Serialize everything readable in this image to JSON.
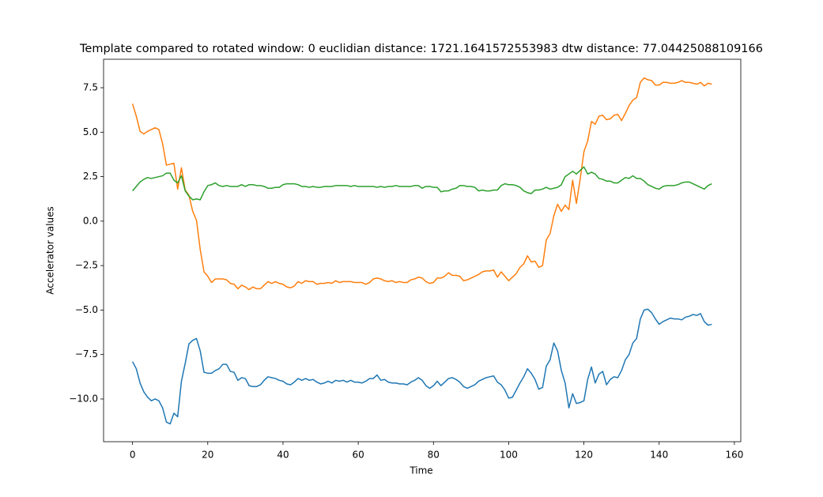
{
  "chart_data": {
    "type": "line",
    "title": "Template compared to rotated window: 0  euclidian distance: 1721.1641572553983  dtw distance: 77.04425088109166",
    "xlabel": "Time",
    "ylabel": "Accelerator values",
    "x": [
      0,
      1,
      2,
      3,
      4,
      5,
      6,
      7,
      8,
      9,
      10,
      11,
      12,
      13,
      14,
      15,
      16,
      17,
      18,
      19,
      20,
      21,
      22,
      23,
      24,
      25,
      26,
      27,
      28,
      29,
      30,
      31,
      32,
      33,
      34,
      35,
      36,
      37,
      38,
      39,
      40,
      41,
      42,
      43,
      44,
      45,
      46,
      47,
      48,
      49,
      50,
      51,
      52,
      53,
      54,
      55,
      56,
      57,
      58,
      59,
      60,
      61,
      62,
      63,
      64,
      65,
      66,
      67,
      68,
      69,
      70,
      71,
      72,
      73,
      74,
      75,
      76,
      77,
      78,
      79,
      80,
      81,
      82,
      83,
      84,
      85,
      86,
      87,
      88,
      89,
      90,
      91,
      92,
      93,
      94,
      95,
      96,
      97,
      98,
      99,
      100,
      101,
      102,
      103,
      104,
      105,
      106,
      107,
      108,
      109,
      110,
      111,
      112,
      113,
      114,
      115,
      116,
      117,
      118,
      119,
      120,
      121,
      122,
      123,
      124,
      125,
      126,
      127,
      128,
      129,
      130,
      131,
      132,
      133,
      134,
      135,
      136,
      137,
      138,
      139,
      140,
      141,
      142,
      143,
      144,
      145,
      146,
      147,
      148,
      149,
      150,
      151,
      152,
      153,
      154
    ],
    "series": [
      {
        "color": "#1f77b4",
        "values": [
          -7.9,
          -8.3,
          -9.1,
          -9.6,
          -9.9,
          -10.1,
          -10.0,
          -10.1,
          -10.5,
          -11.3,
          -11.4,
          -10.8,
          -11.0,
          -9.0,
          -8.0,
          -6.9,
          -6.7,
          -6.6,
          -7.3,
          -8.5,
          -8.55,
          -8.55,
          -8.4,
          -8.3,
          -8.05,
          -8.05,
          -8.45,
          -8.5,
          -8.95,
          -8.8,
          -8.85,
          -9.25,
          -9.3,
          -9.3,
          -9.2,
          -8.95,
          -8.75,
          -8.8,
          -8.85,
          -8.95,
          -9.0,
          -9.15,
          -9.2,
          -9.05,
          -8.85,
          -8.95,
          -8.85,
          -8.95,
          -8.9,
          -9.05,
          -9.15,
          -9.1,
          -9.0,
          -9.1,
          -8.95,
          -9.0,
          -8.95,
          -9.05,
          -8.95,
          -9.05,
          -9.05,
          -9.1,
          -9.0,
          -8.85,
          -8.85,
          -8.65,
          -8.95,
          -8.9,
          -9.05,
          -9.1,
          -9.1,
          -9.15,
          -9.15,
          -9.2,
          -9.05,
          -8.95,
          -8.8,
          -8.95,
          -9.25,
          -9.4,
          -9.25,
          -9.0,
          -9.25,
          -9.05,
          -8.85,
          -8.8,
          -8.9,
          -9.05,
          -9.3,
          -9.4,
          -9.3,
          -9.2,
          -9.0,
          -8.9,
          -8.8,
          -8.75,
          -8.7,
          -9.05,
          -9.2,
          -9.5,
          -9.95,
          -9.9,
          -9.5,
          -9.1,
          -8.75,
          -8.3,
          -8.55,
          -8.9,
          -9.45,
          -9.35,
          -8.15,
          -7.8,
          -6.85,
          -7.3,
          -8.4,
          -9.1,
          -10.5,
          -9.7,
          -10.25,
          -10.2,
          -10.1,
          -8.9,
          -8.2,
          -9.1,
          -8.6,
          -8.45,
          -9.2,
          -8.9,
          -8.75,
          -8.8,
          -8.4,
          -7.8,
          -7.5,
          -6.85,
          -6.6,
          -5.5,
          -5.0,
          -4.95,
          -5.15,
          -5.5,
          -5.8,
          -5.65,
          -5.55,
          -5.45,
          -5.5,
          -5.5,
          -5.55,
          -5.4,
          -5.35,
          -5.25,
          -5.3,
          -5.2,
          -5.65,
          -5.85,
          -5.8
        ]
      },
      {
        "color": "#ff7f0e",
        "values": [
          6.6,
          5.9,
          5.05,
          4.9,
          5.05,
          5.15,
          5.25,
          5.15,
          4.35,
          3.15,
          3.2,
          3.25,
          1.8,
          3.0,
          1.75,
          1.45,
          0.55,
          0.05,
          -1.6,
          -2.85,
          -3.1,
          -3.45,
          -3.25,
          -3.25,
          -3.25,
          -3.3,
          -3.5,
          -3.55,
          -3.8,
          -3.6,
          -3.7,
          -3.85,
          -3.7,
          -3.8,
          -3.8,
          -3.6,
          -3.4,
          -3.5,
          -3.4,
          -3.5,
          -3.55,
          -3.7,
          -3.75,
          -3.65,
          -3.4,
          -3.5,
          -3.35,
          -3.4,
          -3.4,
          -3.55,
          -3.5,
          -3.5,
          -3.45,
          -3.5,
          -3.35,
          -3.45,
          -3.4,
          -3.4,
          -3.4,
          -3.45,
          -3.45,
          -3.45,
          -3.55,
          -3.45,
          -3.25,
          -3.2,
          -3.25,
          -3.35,
          -3.4,
          -3.35,
          -3.45,
          -3.4,
          -3.45,
          -3.45,
          -3.3,
          -3.25,
          -3.15,
          -3.2,
          -3.4,
          -3.5,
          -3.45,
          -3.2,
          -3.2,
          -3.1,
          -2.9,
          -3.05,
          -3.05,
          -3.1,
          -3.35,
          -3.3,
          -3.2,
          -3.1,
          -3.0,
          -2.85,
          -2.8,
          -2.8,
          -2.75,
          -3.15,
          -2.85,
          -3.1,
          -3.35,
          -3.15,
          -2.95,
          -2.6,
          -2.4,
          -1.95,
          -2.3,
          -2.25,
          -2.6,
          -2.5,
          -1.05,
          -0.7,
          0.3,
          0.95,
          0.55,
          0.9,
          0.65,
          2.3,
          1.0,
          2.35,
          3.9,
          4.5,
          5.6,
          5.45,
          5.9,
          5.95,
          5.7,
          5.75,
          5.95,
          6.0,
          5.65,
          6.05,
          6.5,
          6.8,
          6.95,
          7.8,
          8.05,
          7.95,
          7.9,
          7.65,
          7.65,
          7.8,
          7.8,
          7.75,
          7.75,
          7.8,
          7.9,
          7.8,
          7.8,
          7.75,
          7.7,
          7.8,
          7.6,
          7.75,
          7.7
        ]
      },
      {
        "color": "#2ca02c",
        "values": [
          1.7,
          1.95,
          2.2,
          2.35,
          2.45,
          2.4,
          2.45,
          2.5,
          2.55,
          2.7,
          2.7,
          2.3,
          2.15,
          2.55,
          1.7,
          1.4,
          1.2,
          1.25,
          1.2,
          1.65,
          2.0,
          2.05,
          2.15,
          2.0,
          1.95,
          2.0,
          1.95,
          1.95,
          1.95,
          2.05,
          1.95,
          2.05,
          2.05,
          2.0,
          2.0,
          1.95,
          1.85,
          1.85,
          1.9,
          1.9,
          2.05,
          2.1,
          2.1,
          2.1,
          2.05,
          1.95,
          1.95,
          1.9,
          1.95,
          1.9,
          1.9,
          1.95,
          1.95,
          1.95,
          2.0,
          2.0,
          2.0,
          2.0,
          1.95,
          2.0,
          1.95,
          1.95,
          1.95,
          1.95,
          1.95,
          1.9,
          1.95,
          1.9,
          1.95,
          1.95,
          2.0,
          1.95,
          1.95,
          1.95,
          1.95,
          2.0,
          2.0,
          1.85,
          1.95,
          1.95,
          1.9,
          1.9,
          1.65,
          1.7,
          1.7,
          1.8,
          1.85,
          2.0,
          2.0,
          1.95,
          1.95,
          1.9,
          1.7,
          1.75,
          1.7,
          1.7,
          1.75,
          1.75,
          2.0,
          2.1,
          2.05,
          2.05,
          2.0,
          1.9,
          1.7,
          1.6,
          1.55,
          1.75,
          1.75,
          1.8,
          1.9,
          1.8,
          1.85,
          1.9,
          2.05,
          2.5,
          2.65,
          2.8,
          2.65,
          2.85,
          3.05,
          2.65,
          2.75,
          2.65,
          2.4,
          2.35,
          2.25,
          2.25,
          2.15,
          2.15,
          2.3,
          2.45,
          2.4,
          2.55,
          2.4,
          2.4,
          2.25,
          2.05,
          1.95,
          1.85,
          1.8,
          1.95,
          2.0,
          2.0,
          2.0,
          2.05,
          2.15,
          2.2,
          2.2,
          2.1,
          2.0,
          1.9,
          1.8,
          2.0,
          2.1
        ]
      }
    ],
    "xlim": [
      -7.7,
      161.7
    ],
    "ylim": [
      -12.4,
      9.1
    ],
    "xticks": [
      0,
      20,
      40,
      60,
      80,
      100,
      120,
      140,
      160
    ],
    "yticks": [
      {
        "value": -10,
        "label": "−10.0"
      },
      {
        "value": -7.5,
        "label": "−7.5"
      },
      {
        "value": -5,
        "label": "−5.0"
      },
      {
        "value": -2.5,
        "label": "−2.5"
      },
      {
        "value": 0,
        "label": "0.0"
      },
      {
        "value": 2.5,
        "label": "2.5"
      },
      {
        "value": 5,
        "label": "5.0"
      },
      {
        "value": 7.5,
        "label": "7.5"
      }
    ]
  }
}
